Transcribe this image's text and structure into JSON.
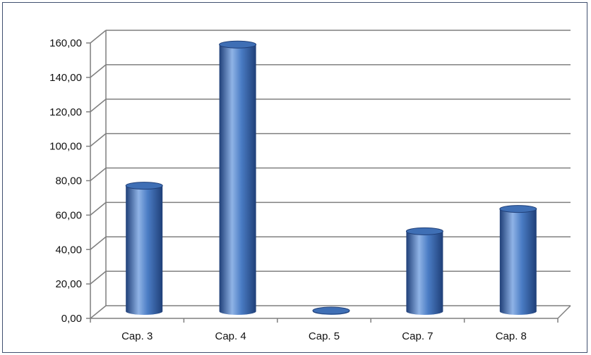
{
  "chart_data": {
    "type": "bar",
    "title": "",
    "xlabel": "",
    "ylabel": "",
    "categories": [
      "Cap. 3",
      "Cap. 4",
      "Cap. 5",
      "Cap. 7",
      "Cap. 8"
    ],
    "values": [
      73.0,
      155.0,
      0.4,
      46.5,
      59.5
    ],
    "ylim": [
      0,
      160
    ],
    "yticks": [
      "0,00",
      "20,00",
      "40,00",
      "60,00",
      "80,00",
      "100,00",
      "120,00",
      "140,00",
      "160,00"
    ],
    "grid": true,
    "legend": "none",
    "bar_style": "3d-cylinder",
    "colors": {
      "bar": "#3f6fb5",
      "bar_light": "#8fb3e6",
      "bar_dark": "#1f3f78",
      "grid": "#7f7f7f"
    }
  }
}
